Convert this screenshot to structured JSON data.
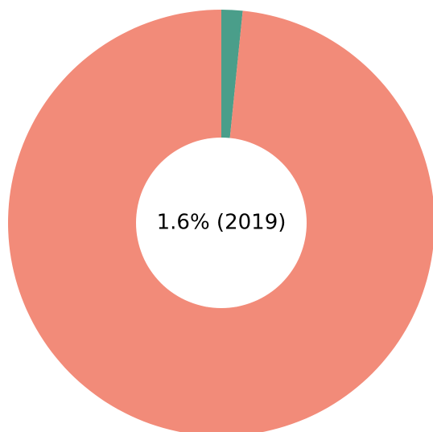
{
  "chart_data": {
    "type": "pie",
    "variant": "donut",
    "title": "",
    "slices": [
      {
        "value": 1.6,
        "color": "#4a9e8a"
      },
      {
        "value": 98.4,
        "color": "#f28b79"
      }
    ],
    "start_angle_deg": 90,
    "direction": "clockwise",
    "center_label": "1.6% (2019)",
    "legend": "none"
  }
}
